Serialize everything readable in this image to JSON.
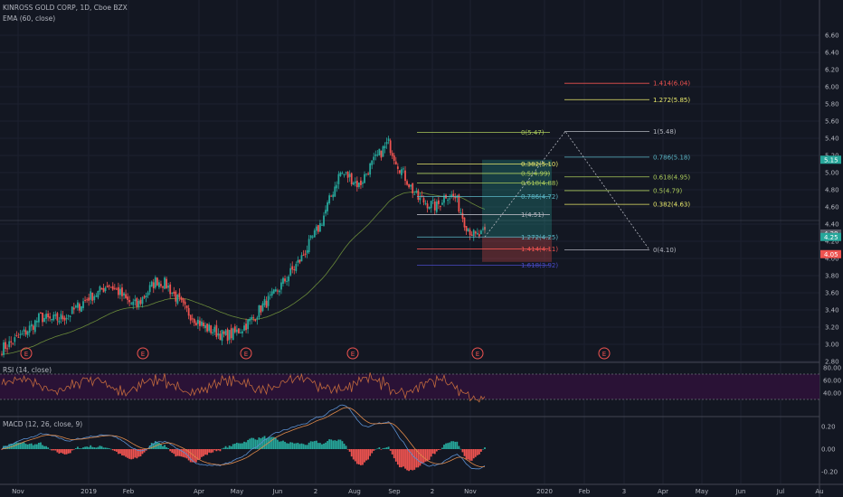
{
  "header": {
    "symbol_line": "KINROSS GOLD CORP, 1D, Cboe BZX",
    "ema_label": "EMA (60, close)",
    "rsi_label": "RSI (14, close)",
    "macd_label": "MACD (12, 26, close, 9)"
  },
  "colors": {
    "background": "#131722",
    "up": "#26a69a",
    "down": "#ef5350",
    "ema": "#6a8a3a",
    "rsi_line": "#c26a3d",
    "rsi_band": "#2a1236",
    "macd_line": "#5b8fd0",
    "signal_line": "#e08a4a"
  },
  "price_axis": {
    "ticks": [
      "2.80",
      "3.00",
      "3.20",
      "3.40",
      "3.60",
      "3.80",
      "4.00",
      "4.20",
      "4.40",
      "4.60",
      "4.80",
      "5.00",
      "5.20",
      "5.40",
      "5.60",
      "5.80",
      "6.00",
      "6.20",
      "6.40",
      "6.60"
    ],
    "badges": [
      {
        "text": "5.15",
        "value": 5.15,
        "color": "#26a69a"
      },
      {
        "text": "4.29",
        "value": 4.29,
        "color": "#5d606b"
      },
      {
        "text": "4.25",
        "value": 4.25,
        "color": "#26a69a"
      },
      {
        "text": "4.05",
        "value": 4.05,
        "color": "#ef5350"
      }
    ]
  },
  "rsi_axis": {
    "ticks": [
      "80.00",
      "60.00",
      "40.00"
    ]
  },
  "macd_axis": {
    "ticks": [
      "0.20",
      "0.00",
      "-0.20"
    ]
  },
  "time_axis": {
    "ticks": [
      "Nov",
      "2019",
      "Feb",
      "Apr",
      "May",
      "Jun",
      "2",
      "Aug",
      "Sep",
      "2",
      "Nov",
      "2020",
      "Feb",
      "3",
      "Apr",
      "May",
      "Jun",
      "Jul",
      "Au"
    ]
  },
  "earnings_markers": {
    "label": "E",
    "count": 7
  },
  "chart_data": {
    "type": "candlestick",
    "ylim": [
      2.75,
      6.7
    ],
    "price_series": [
      2.95,
      3.02,
      3.1,
      3.2,
      3.32,
      3.28,
      3.3,
      3.35,
      3.45,
      3.55,
      3.6,
      3.7,
      3.62,
      3.5,
      3.45,
      3.6,
      3.75,
      3.7,
      3.55,
      3.4,
      3.3,
      3.2,
      3.15,
      3.1,
      3.12,
      3.2,
      3.3,
      3.45,
      3.55,
      3.7,
      3.85,
      4.0,
      4.2,
      4.4,
      4.7,
      5.0,
      4.95,
      4.85,
      5.05,
      5.2,
      5.35,
      5.1,
      4.9,
      4.7,
      4.65,
      4.6,
      4.75,
      4.7,
      4.4,
      4.25,
      4.29
    ],
    "fib_left": [
      {
        "label": "0(5.47)",
        "value": 5.47,
        "color": "#a9c95a"
      },
      {
        "label": "0.382(5.10)",
        "value": 5.1,
        "color": "#e8e86b"
      },
      {
        "label": "0.5(4.99)",
        "value": 4.99,
        "color": "#a9c95a"
      },
      {
        "label": "0.618(4.88)",
        "value": 4.88,
        "color": "#a9c95a"
      },
      {
        "label": "0.786(4.72)",
        "value": 4.72,
        "color": "#5cb8c8"
      },
      {
        "label": "1(4.51)",
        "value": 4.51,
        "color": "#b2b5be"
      },
      {
        "label": "1.272(4.25)",
        "value": 4.25,
        "color": "#5cb8c8"
      },
      {
        "label": "1.414(4.11)",
        "value": 4.11,
        "color": "#ef5350"
      },
      {
        "label": "1.618(3.92)",
        "value": 3.92,
        "color": "#4a4ac8"
      }
    ],
    "fib_right": [
      {
        "label": "1.414(6.04)",
        "value": 6.04,
        "color": "#ef5350"
      },
      {
        "label": "1.272(5.85)",
        "value": 5.85,
        "color": "#e8e86b"
      },
      {
        "label": "1(5.48)",
        "value": 5.48,
        "color": "#b2b5be"
      },
      {
        "label": "0.786(5.18)",
        "value": 5.18,
        "color": "#5cb8c8"
      },
      {
        "label": "0.618(4.95)",
        "value": 4.95,
        "color": "#a9c95a"
      },
      {
        "label": "0.5(4.79)",
        "value": 4.79,
        "color": "#a9c95a"
      },
      {
        "label": "0.382(4.63)",
        "value": 4.63,
        "color": "#e8e86b"
      },
      {
        "label": "0(4.10)",
        "value": 4.1,
        "color": "#b2b5be"
      }
    ],
    "rsi_ylim": [
      20,
      85
    ],
    "macd_ylim": [
      -0.28,
      0.28
    ]
  }
}
